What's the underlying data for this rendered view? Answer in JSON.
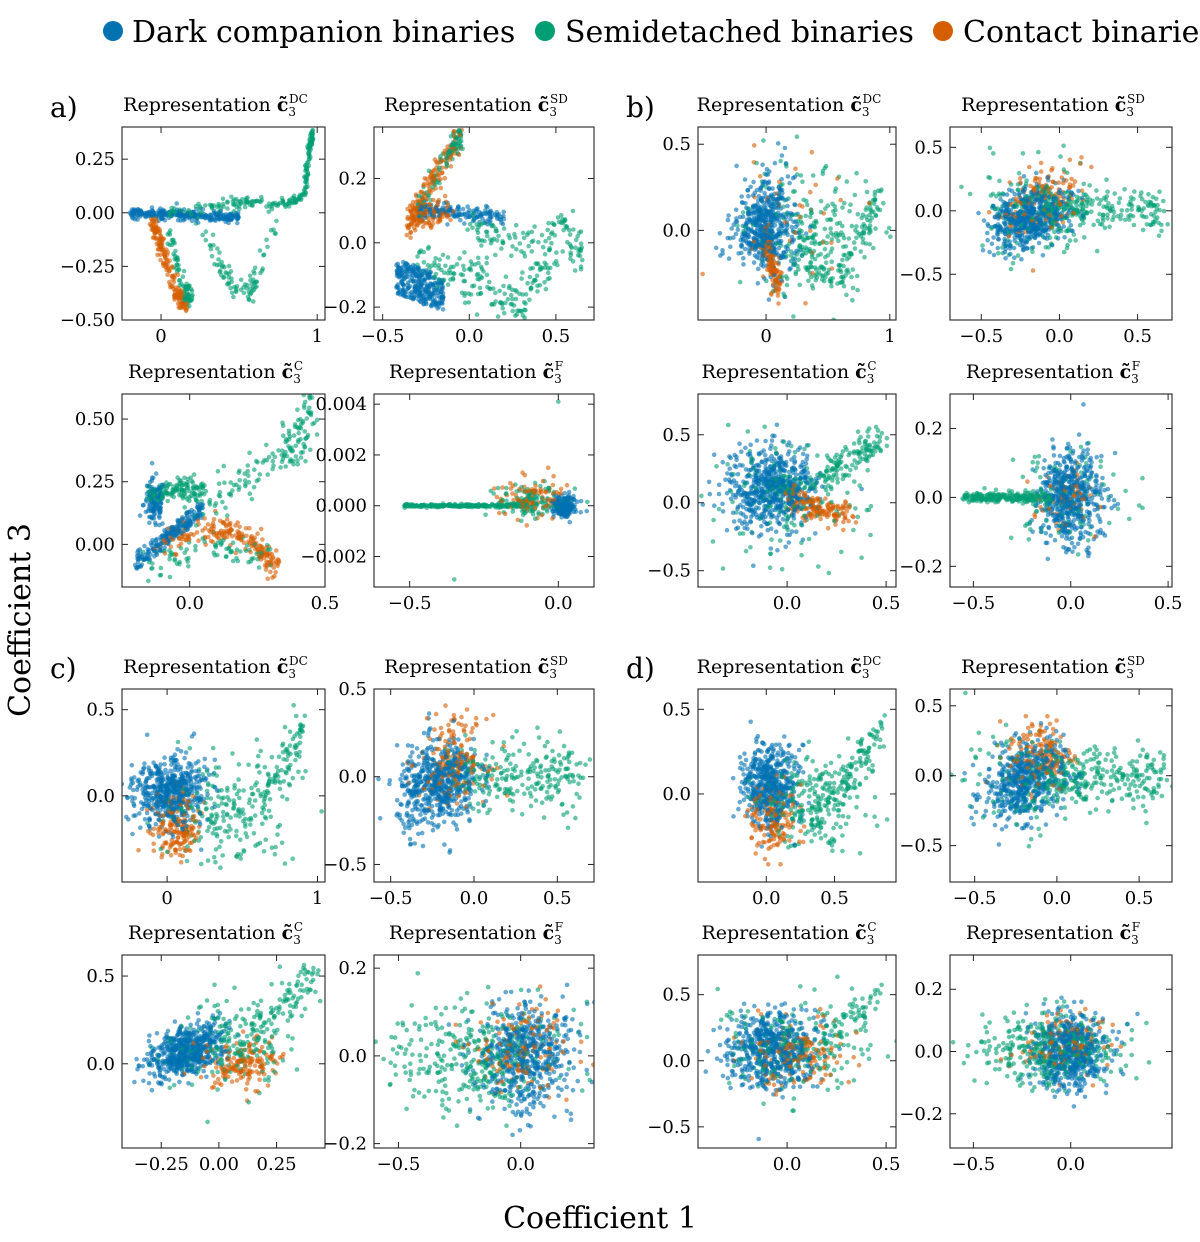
{
  "figure": {
    "xlabel": "Coefficient 1",
    "ylabel": "Coefficient 3",
    "legend": [
      {
        "label": "Dark companion binaries",
        "color": "#0072b2"
      },
      {
        "label": "Semidetached binaries",
        "color": "#009e73"
      },
      {
        "label": "Contact binaries",
        "color": "#d55e00"
      }
    ]
  },
  "panels": [
    {
      "letter": "a)"
    },
    {
      "letter": "b)"
    },
    {
      "letter": "c)"
    },
    {
      "letter": "d)"
    }
  ],
  "chart_data": [
    {
      "type": "scatter",
      "panel": "a",
      "title_prefix": "Representation",
      "symbol": "c̃",
      "subscript": "3",
      "superscript": "DC",
      "xlim": [
        -0.25,
        1.05
      ],
      "ylim": [
        -0.5,
        0.4
      ],
      "xticks": [
        0,
        1
      ],
      "xtick_labels": [
        "0",
        "1"
      ],
      "yticks": [
        0.25,
        0,
        -0.25,
        -0.5
      ],
      "ytick_labels": [
        "0.25",
        "0.00",
        "−0.25",
        "−0.50"
      ],
      "pattern": "a_dc"
    },
    {
      "type": "scatter",
      "panel": "a",
      "title_prefix": "Representation",
      "symbol": "c̃",
      "subscript": "3",
      "superscript": "SD",
      "xlim": [
        -0.55,
        0.72
      ],
      "ylim": [
        -0.24,
        0.36
      ],
      "xticks": [
        -0.5,
        0,
        0.5
      ],
      "xtick_labels": [
        "−0.5",
        "0.0",
        "0.5"
      ],
      "yticks": [
        0.2,
        0,
        -0.2
      ],
      "ytick_labels": [
        "0.2",
        "0.0",
        "−0.2"
      ],
      "pattern": "a_sd"
    },
    {
      "type": "scatter",
      "panel": "a",
      "title_prefix": "Representation",
      "symbol": "c̃",
      "subscript": "3",
      "superscript": "C",
      "xlim": [
        -0.25,
        0.5
      ],
      "ylim": [
        -0.17,
        0.6
      ],
      "xticks": [
        0,
        0.5
      ],
      "xtick_labels": [
        "0.0",
        "0.5"
      ],
      "yticks": [
        0.5,
        0.25,
        0
      ],
      "ytick_labels": [
        "0.50",
        "0.25",
        "0.00"
      ],
      "pattern": "a_c"
    },
    {
      "type": "scatter",
      "panel": "a",
      "title_prefix": "Representation",
      "symbol": "c̃",
      "subscript": "3",
      "superscript": "F",
      "xlim": [
        -0.62,
        0.12
      ],
      "ylim": [
        -0.0032,
        0.0044
      ],
      "xticks": [
        -0.5,
        0
      ],
      "xtick_labels": [
        "−0.5",
        "0.0"
      ],
      "yticks": [
        0.004,
        0.002,
        0,
        -0.002
      ],
      "ytick_labels": [
        "0.004",
        "0.002",
        "0.000",
        "−0.002"
      ],
      "pattern": "a_f"
    },
    {
      "type": "scatter",
      "panel": "b",
      "title_prefix": "Representation",
      "symbol": "c̃",
      "subscript": "3",
      "superscript": "DC",
      "xlim": [
        -0.55,
        1.05
      ],
      "ylim": [
        -0.52,
        0.6
      ],
      "xticks": [
        0,
        1
      ],
      "xtick_labels": [
        "0",
        "1"
      ],
      "yticks": [
        0.5,
        0
      ],
      "ytick_labels": [
        "0.5",
        "0.0"
      ],
      "pattern": "b_dc"
    },
    {
      "type": "scatter",
      "panel": "b",
      "title_prefix": "Representation",
      "symbol": "c̃",
      "subscript": "3",
      "superscript": "SD",
      "xlim": [
        -0.7,
        0.72
      ],
      "ylim": [
        -0.86,
        0.66
      ],
      "xticks": [
        -0.5,
        0,
        0.5
      ],
      "xtick_labels": [
        "−0.5",
        "0.0",
        "0.5"
      ],
      "yticks": [
        0.5,
        0,
        -0.5
      ],
      "ytick_labels": [
        "0.5",
        "0.0",
        "−0.5"
      ],
      "pattern": "b_sd"
    },
    {
      "type": "scatter",
      "panel": "b",
      "title_prefix": "Representation",
      "symbol": "c̃",
      "subscript": "3",
      "superscript": "C",
      "xlim": [
        -0.45,
        0.55
      ],
      "ylim": [
        -0.62,
        0.8
      ],
      "xticks": [
        0,
        0.5
      ],
      "xtick_labels": [
        "0.0",
        "0.5"
      ],
      "yticks": [
        0.5,
        0,
        -0.5
      ],
      "ytick_labels": [
        "0.5",
        "0.0",
        "−0.5"
      ],
      "pattern": "b_c"
    },
    {
      "type": "scatter",
      "panel": "b",
      "title_prefix": "Representation",
      "symbol": "c̃",
      "subscript": "3",
      "superscript": "F",
      "xlim": [
        -0.62,
        0.52
      ],
      "ylim": [
        -0.26,
        0.3
      ],
      "xticks": [
        -0.5,
        0,
        0.5
      ],
      "xtick_labels": [
        "−0.5",
        "0.0",
        "0.5"
      ],
      "yticks": [
        0.2,
        0,
        -0.2
      ],
      "ytick_labels": [
        "0.2",
        "0.0",
        "−0.2"
      ],
      "pattern": "b_f"
    },
    {
      "type": "scatter",
      "panel": "c",
      "title_prefix": "Representation",
      "symbol": "c̃",
      "subscript": "3",
      "superscript": "DC",
      "xlim": [
        -0.3,
        1.05
      ],
      "ylim": [
        -0.5,
        0.62
      ],
      "xticks": [
        0,
        1
      ],
      "xtick_labels": [
        "0",
        "1"
      ],
      "yticks": [
        0.5,
        0
      ],
      "ytick_labels": [
        "0.5",
        "0.0"
      ],
      "pattern": "c_dc"
    },
    {
      "type": "scatter",
      "panel": "c",
      "title_prefix": "Representation",
      "symbol": "c̃",
      "subscript": "3",
      "superscript": "SD",
      "xlim": [
        -0.6,
        0.72
      ],
      "ylim": [
        -0.6,
        0.5
      ],
      "xticks": [
        -0.5,
        0,
        0.5
      ],
      "xtick_labels": [
        "−0.5",
        "0.0",
        "0.5"
      ],
      "yticks": [
        0.5,
        0,
        -0.5
      ],
      "ytick_labels": [
        "0.5",
        "0.0",
        "−0.5"
      ],
      "pattern": "c_sd"
    },
    {
      "type": "scatter",
      "panel": "c",
      "title_prefix": "Representation",
      "symbol": "c̃",
      "subscript": "3",
      "superscript": "C",
      "xlim": [
        -0.42,
        0.46
      ],
      "ylim": [
        -0.48,
        0.62
      ],
      "xticks": [
        -0.25,
        0,
        0.25
      ],
      "xtick_labels": [
        "−0.25",
        "0.00",
        "0.25"
      ],
      "yticks": [
        0.5,
        0
      ],
      "ytick_labels": [
        "0.5",
        "0.0"
      ],
      "pattern": "c_c"
    },
    {
      "type": "scatter",
      "panel": "c",
      "title_prefix": "Representation",
      "symbol": "c̃",
      "subscript": "3",
      "superscript": "F",
      "xlim": [
        -0.6,
        0.3
      ],
      "ylim": [
        -0.21,
        0.23
      ],
      "xticks": [
        -0.5,
        0
      ],
      "xtick_labels": [
        "−0.5",
        "0.0"
      ],
      "yticks": [
        0.2,
        0,
        -0.2
      ],
      "ytick_labels": [
        "0.2",
        "0.0",
        "−0.2"
      ],
      "pattern": "c_f"
    },
    {
      "type": "scatter",
      "panel": "d",
      "title_prefix": "Representation",
      "symbol": "c̃",
      "subscript": "3",
      "superscript": "DC",
      "xlim": [
        -0.5,
        0.95
      ],
      "ylim": [
        -0.52,
        0.62
      ],
      "xticks": [
        0,
        0.5
      ],
      "xtick_labels": [
        "0.0",
        "0.5"
      ],
      "yticks": [
        0.5,
        0
      ],
      "ytick_labels": [
        "0.5",
        "0.0"
      ],
      "pattern": "d_dc"
    },
    {
      "type": "scatter",
      "panel": "d",
      "title_prefix": "Representation",
      "symbol": "c̃",
      "subscript": "3",
      "superscript": "SD",
      "xlim": [
        -0.65,
        0.7
      ],
      "ylim": [
        -0.76,
        0.62
      ],
      "xticks": [
        -0.5,
        0,
        0.5
      ],
      "xtick_labels": [
        "−0.5",
        "0.0",
        "0.5"
      ],
      "yticks": [
        0.5,
        0,
        -0.5
      ],
      "ytick_labels": [
        "0.5",
        "0.0",
        "−0.5"
      ],
      "pattern": "d_sd"
    },
    {
      "type": "scatter",
      "panel": "d",
      "title_prefix": "Representation",
      "symbol": "c̃",
      "subscript": "3",
      "superscript": "C",
      "xlim": [
        -0.45,
        0.55
      ],
      "ylim": [
        -0.66,
        0.8
      ],
      "xticks": [
        0,
        0.5
      ],
      "xtick_labels": [
        "0.0",
        "0.5"
      ],
      "yticks": [
        0.5,
        0,
        -0.5
      ],
      "ytick_labels": [
        "0.5",
        "0.0",
        "−0.5"
      ],
      "pattern": "d_c"
    },
    {
      "type": "scatter",
      "panel": "d",
      "title_prefix": "Representation",
      "symbol": "c̃",
      "subscript": "3",
      "superscript": "F",
      "xlim": [
        -0.62,
        0.52
      ],
      "ylim": [
        -0.31,
        0.31
      ],
      "xticks": [
        -0.5,
        0
      ],
      "xtick_labels": [
        "−0.5",
        "0.0"
      ],
      "yticks": [
        0.2,
        0,
        -0.2
      ],
      "ytick_labels": [
        "0.2",
        "0.0",
        "−0.2"
      ],
      "pattern": "d_f"
    }
  ]
}
